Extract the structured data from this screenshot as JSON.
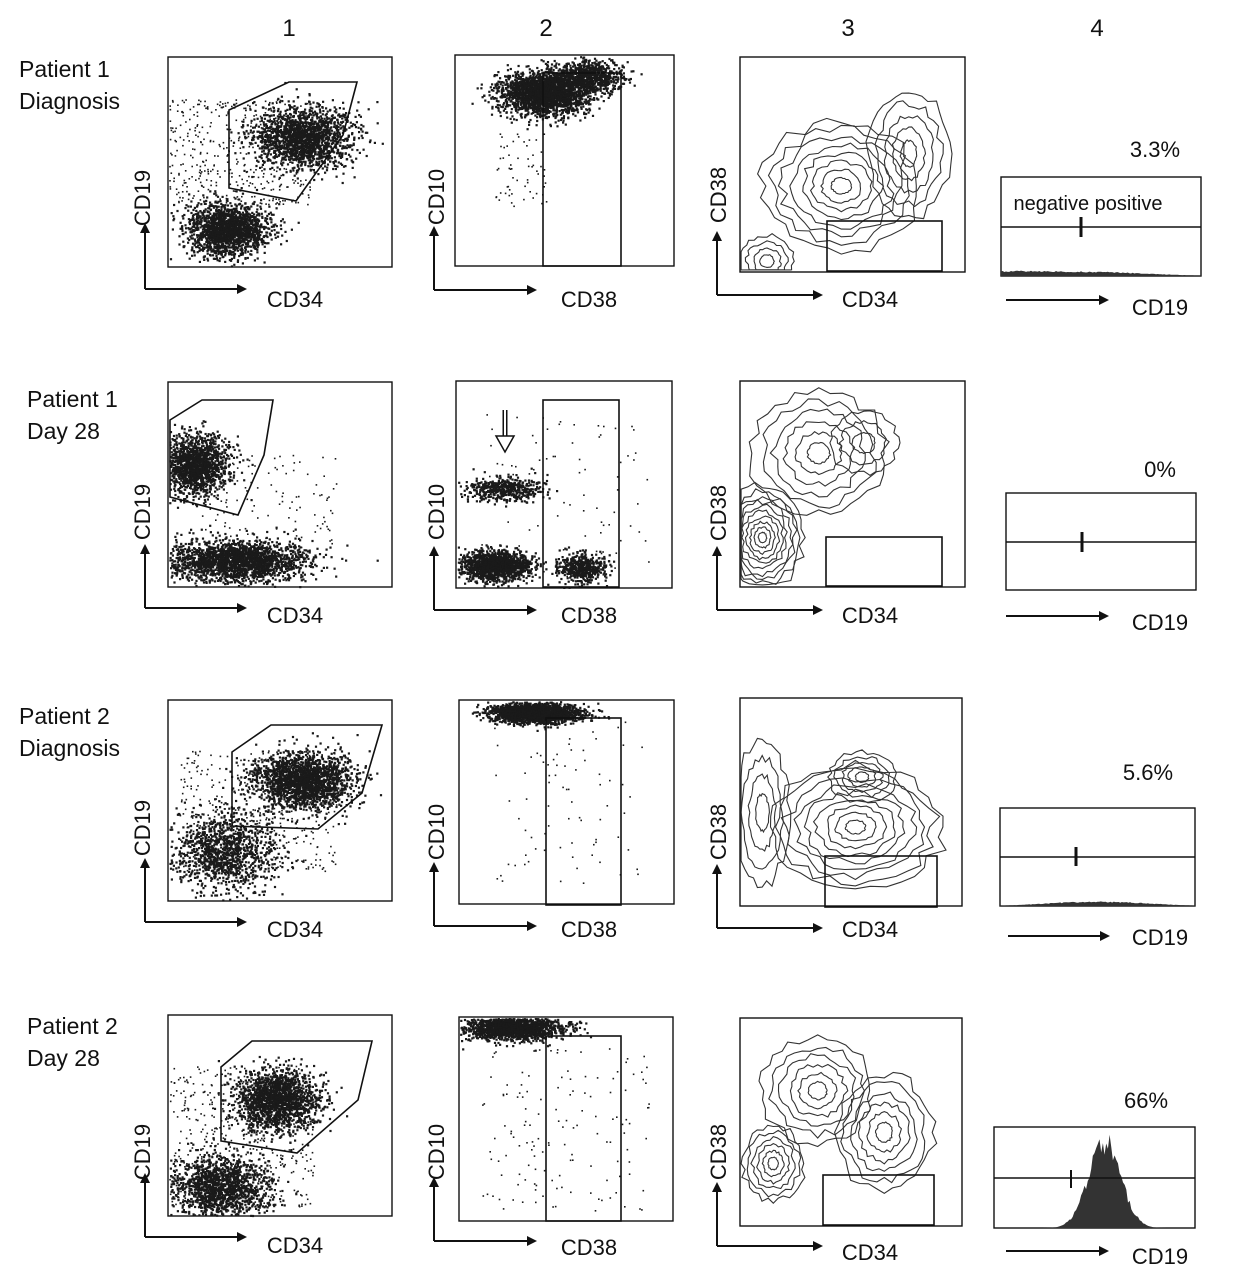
{
  "columns": [
    "1",
    "2",
    "3",
    "4"
  ],
  "rows": [
    {
      "label_line1": "Patient 1",
      "label_line2": "Diagnosis",
      "percent": "3.3%",
      "hist_note": "negative positive"
    },
    {
      "label_line1": "Patient 1",
      "label_line2": "Day 28",
      "percent": "0%",
      "hist_note": ""
    },
    {
      "label_line1": "Patient 2",
      "label_line2": "Diagnosis",
      "percent": "5.6%",
      "hist_note": ""
    },
    {
      "label_line1": "Patient 2",
      "label_line2": "Day 28",
      "percent": "66%",
      "hist_note": ""
    }
  ],
  "axes": {
    "col1": {
      "x": "CD34",
      "y": "CD19"
    },
    "col2": {
      "x": "CD38",
      "y": "CD10"
    },
    "col3": {
      "x": "CD34",
      "y": "CD38"
    },
    "col4": {
      "x": "CD19"
    }
  },
  "colors": {
    "ink": "#111111",
    "dots": "#1a1a1a",
    "background": "#ffffff"
  },
  "chart_data": {
    "type": "scatter",
    "panels": "4x4 flow cytometry grid (dot plots, contour plots, histograms)",
    "histogram_positive_fraction_percent": [
      3.3,
      0,
      5.6,
      66
    ],
    "xlabel_columns": [
      "CD34",
      "CD38",
      "CD34",
      "CD19"
    ],
    "ylabel_columns": [
      "CD19",
      "CD10",
      "CD38",
      ""
    ]
  }
}
